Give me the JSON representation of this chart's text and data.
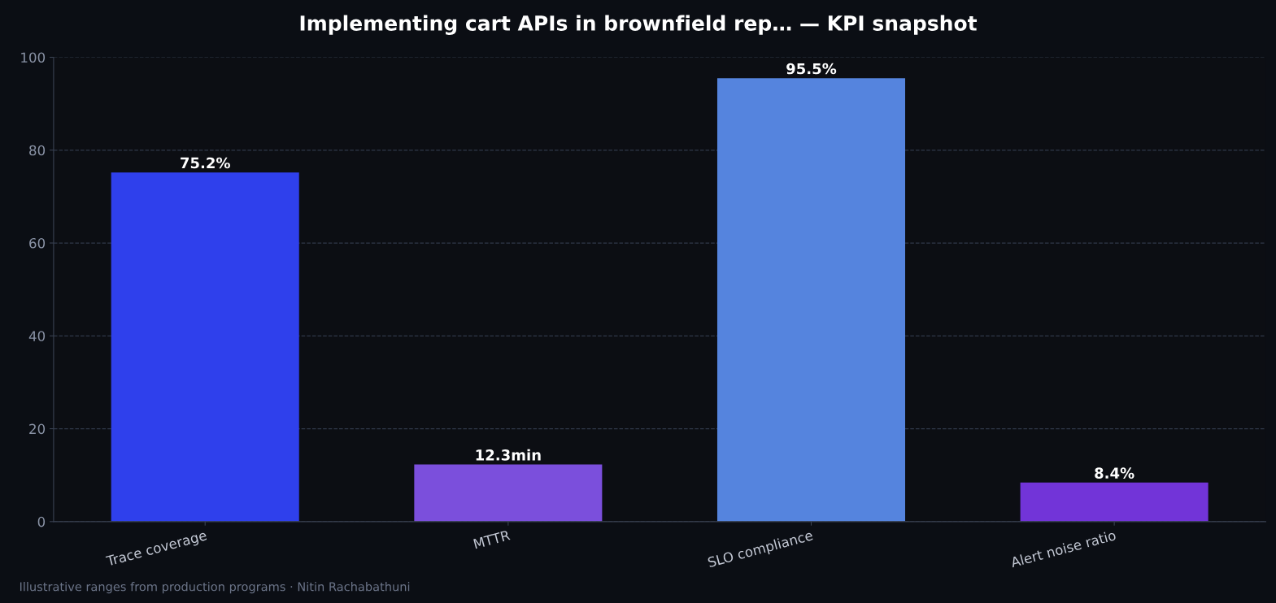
{
  "chart_data": {
    "type": "bar",
    "title": "Implementing cart APIs in brownfield rep… — KPI snapshot",
    "categories": [
      "Trace coverage",
      "MTTR",
      "SLO compliance",
      "Alert noise ratio"
    ],
    "values": [
      75.2,
      12.3,
      95.5,
      8.4
    ],
    "colors": [
      "#2f40ec",
      "#7b4fdc",
      "#5584de",
      "#7234d8"
    ],
    "value_labels": [
      "75.2%",
      "12.3min",
      "95.5%",
      "8.4%"
    ],
    "ylim": [
      0,
      100
    ],
    "yticks": [
      0,
      20,
      40,
      60,
      80,
      100
    ],
    "grid": "y",
    "annotations": [
      "Illustrative ranges from production programs · Nitin Rachabathuni"
    ]
  }
}
